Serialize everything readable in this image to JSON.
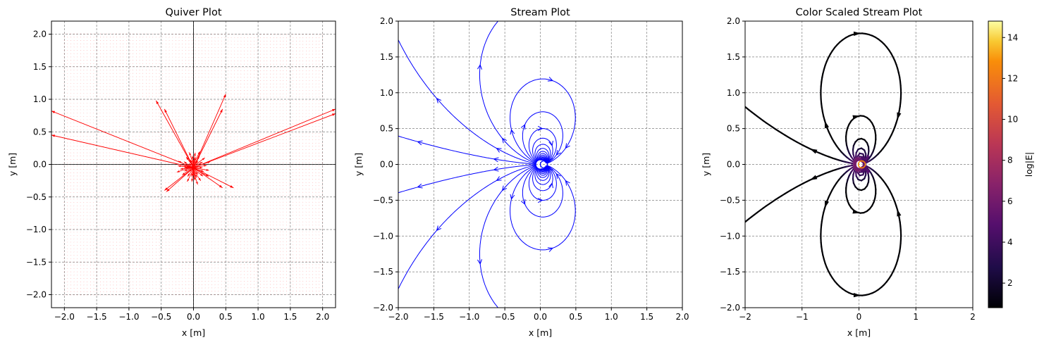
{
  "figure": {
    "background": "#ffffff"
  },
  "chart_data": [
    {
      "type": "quiver",
      "title": "Quiver Plot",
      "xlabel": "x [m]",
      "ylabel": "y [m]",
      "xlim": [
        -2.2,
        2.2
      ],
      "ylim": [
        -2.2,
        2.2
      ],
      "xticks": [
        -2.0,
        -1.5,
        -1.0,
        -0.5,
        0.0,
        0.5,
        1.0,
        1.5,
        2.0
      ],
      "yticks": [
        -2.0,
        -1.5,
        -1.0,
        -0.5,
        0.0,
        0.5,
        1.0,
        1.5,
        2.0
      ],
      "xtick_labels": [
        "−2.0",
        "−1.5",
        "−1.0",
        "−0.5",
        "0.0",
        "0.5",
        "1.0",
        "1.5",
        "2.0"
      ],
      "ytick_labels": [
        "−2.0",
        "−1.5",
        "−1.0",
        "−0.5",
        "0.0",
        "0.5",
        "1.0",
        "1.5",
        "2.0"
      ],
      "grid": true,
      "color": "#ff0000",
      "field_region": [
        -2.0,
        2.0,
        -2.0,
        2.0
      ],
      "long_arrows": [
        {
          "from": [
            0.0,
            -0.05
          ],
          "to": [
            -2.2,
            0.82
          ]
        },
        {
          "from": [
            0.0,
            -0.05
          ],
          "to": [
            -2.2,
            0.45
          ]
        },
        {
          "from": [
            0.0,
            -0.05
          ],
          "to": [
            2.2,
            0.85
          ]
        },
        {
          "from": [
            0.0,
            -0.05
          ],
          "to": [
            2.2,
            0.78
          ]
        },
        {
          "from": [
            0.0,
            -0.05
          ],
          "to": [
            -0.58,
            0.98
          ]
        },
        {
          "from": [
            0.0,
            -0.05
          ],
          "to": [
            -0.45,
            0.85
          ]
        },
        {
          "from": [
            0.0,
            -0.05
          ],
          "to": [
            0.5,
            1.08
          ]
        },
        {
          "from": [
            0.0,
            -0.05
          ],
          "to": [
            0.45,
            0.85
          ]
        },
        {
          "from": [
            0.0,
            -0.05
          ],
          "to": [
            -0.45,
            -0.4
          ]
        },
        {
          "from": [
            0.0,
            -0.05
          ],
          "to": [
            -0.42,
            -0.42
          ]
        },
        {
          "from": [
            0.0,
            -0.05
          ],
          "to": [
            0.62,
            -0.36
          ]
        },
        {
          "from": [
            0.0,
            -0.05
          ],
          "to": [
            0.45,
            -0.36
          ]
        }
      ]
    },
    {
      "type": "stream",
      "title": "Stream Plot",
      "xlabel": "x [m]",
      "ylabel": "y [m]",
      "xlim": [
        -2.0,
        2.0
      ],
      "ylim": [
        -2.0,
        2.0
      ],
      "xticks": [
        -2.0,
        -1.5,
        -1.0,
        -0.5,
        0.0,
        0.5,
        1.0,
        1.5,
        2.0
      ],
      "yticks": [
        -2.0,
        -1.5,
        -1.0,
        -0.5,
        0.0,
        0.5,
        1.0,
        1.5,
        2.0
      ],
      "xtick_labels": [
        "−2.0",
        "−1.5",
        "−1.0",
        "−0.5",
        "0.0",
        "0.5",
        "1.0",
        "1.5",
        "2.0"
      ],
      "ytick_labels": [
        "−2.0",
        "−1.5",
        "−1.0",
        "−0.5",
        "0.0",
        "0.5",
        "1.0",
        "1.5",
        "2.0"
      ],
      "grid": true,
      "color": "#0000ff",
      "marker": {
        "x": 0.05,
        "y": 0.0,
        "color": "#0000ff"
      }
    },
    {
      "type": "stream",
      "title": "Color Scaled Stream Plot",
      "xlabel": "x [m]",
      "ylabel": "y [m]",
      "xlim": [
        -2,
        2
      ],
      "ylim": [
        -2.0,
        2.0
      ],
      "xticks": [
        -2,
        -1,
        0,
        1,
        2
      ],
      "yticks": [
        -2.0,
        -1.5,
        -1.0,
        -0.5,
        0.0,
        0.5,
        1.0,
        1.5,
        2.0
      ],
      "xtick_labels": [
        "−2",
        "−1",
        "0",
        "1",
        "2"
      ],
      "ytick_labels": [
        "−2.0",
        "−1.5",
        "−1.0",
        "−0.5",
        "0.0",
        "0.5",
        "1.0",
        "1.5",
        "2.0"
      ],
      "grid": true,
      "colormap": "inferno",
      "marker": {
        "x": 0.05,
        "y": 0.0,
        "color": "#ff8c00"
      },
      "colorbar": {
        "label": "log|E|",
        "range": [
          0.8,
          14.8
        ],
        "ticks": [
          2,
          4,
          6,
          8,
          10,
          12,
          14
        ],
        "tick_labels": [
          "2",
          "4",
          "6",
          "8",
          "10",
          "12",
          "14"
        ]
      }
    }
  ]
}
